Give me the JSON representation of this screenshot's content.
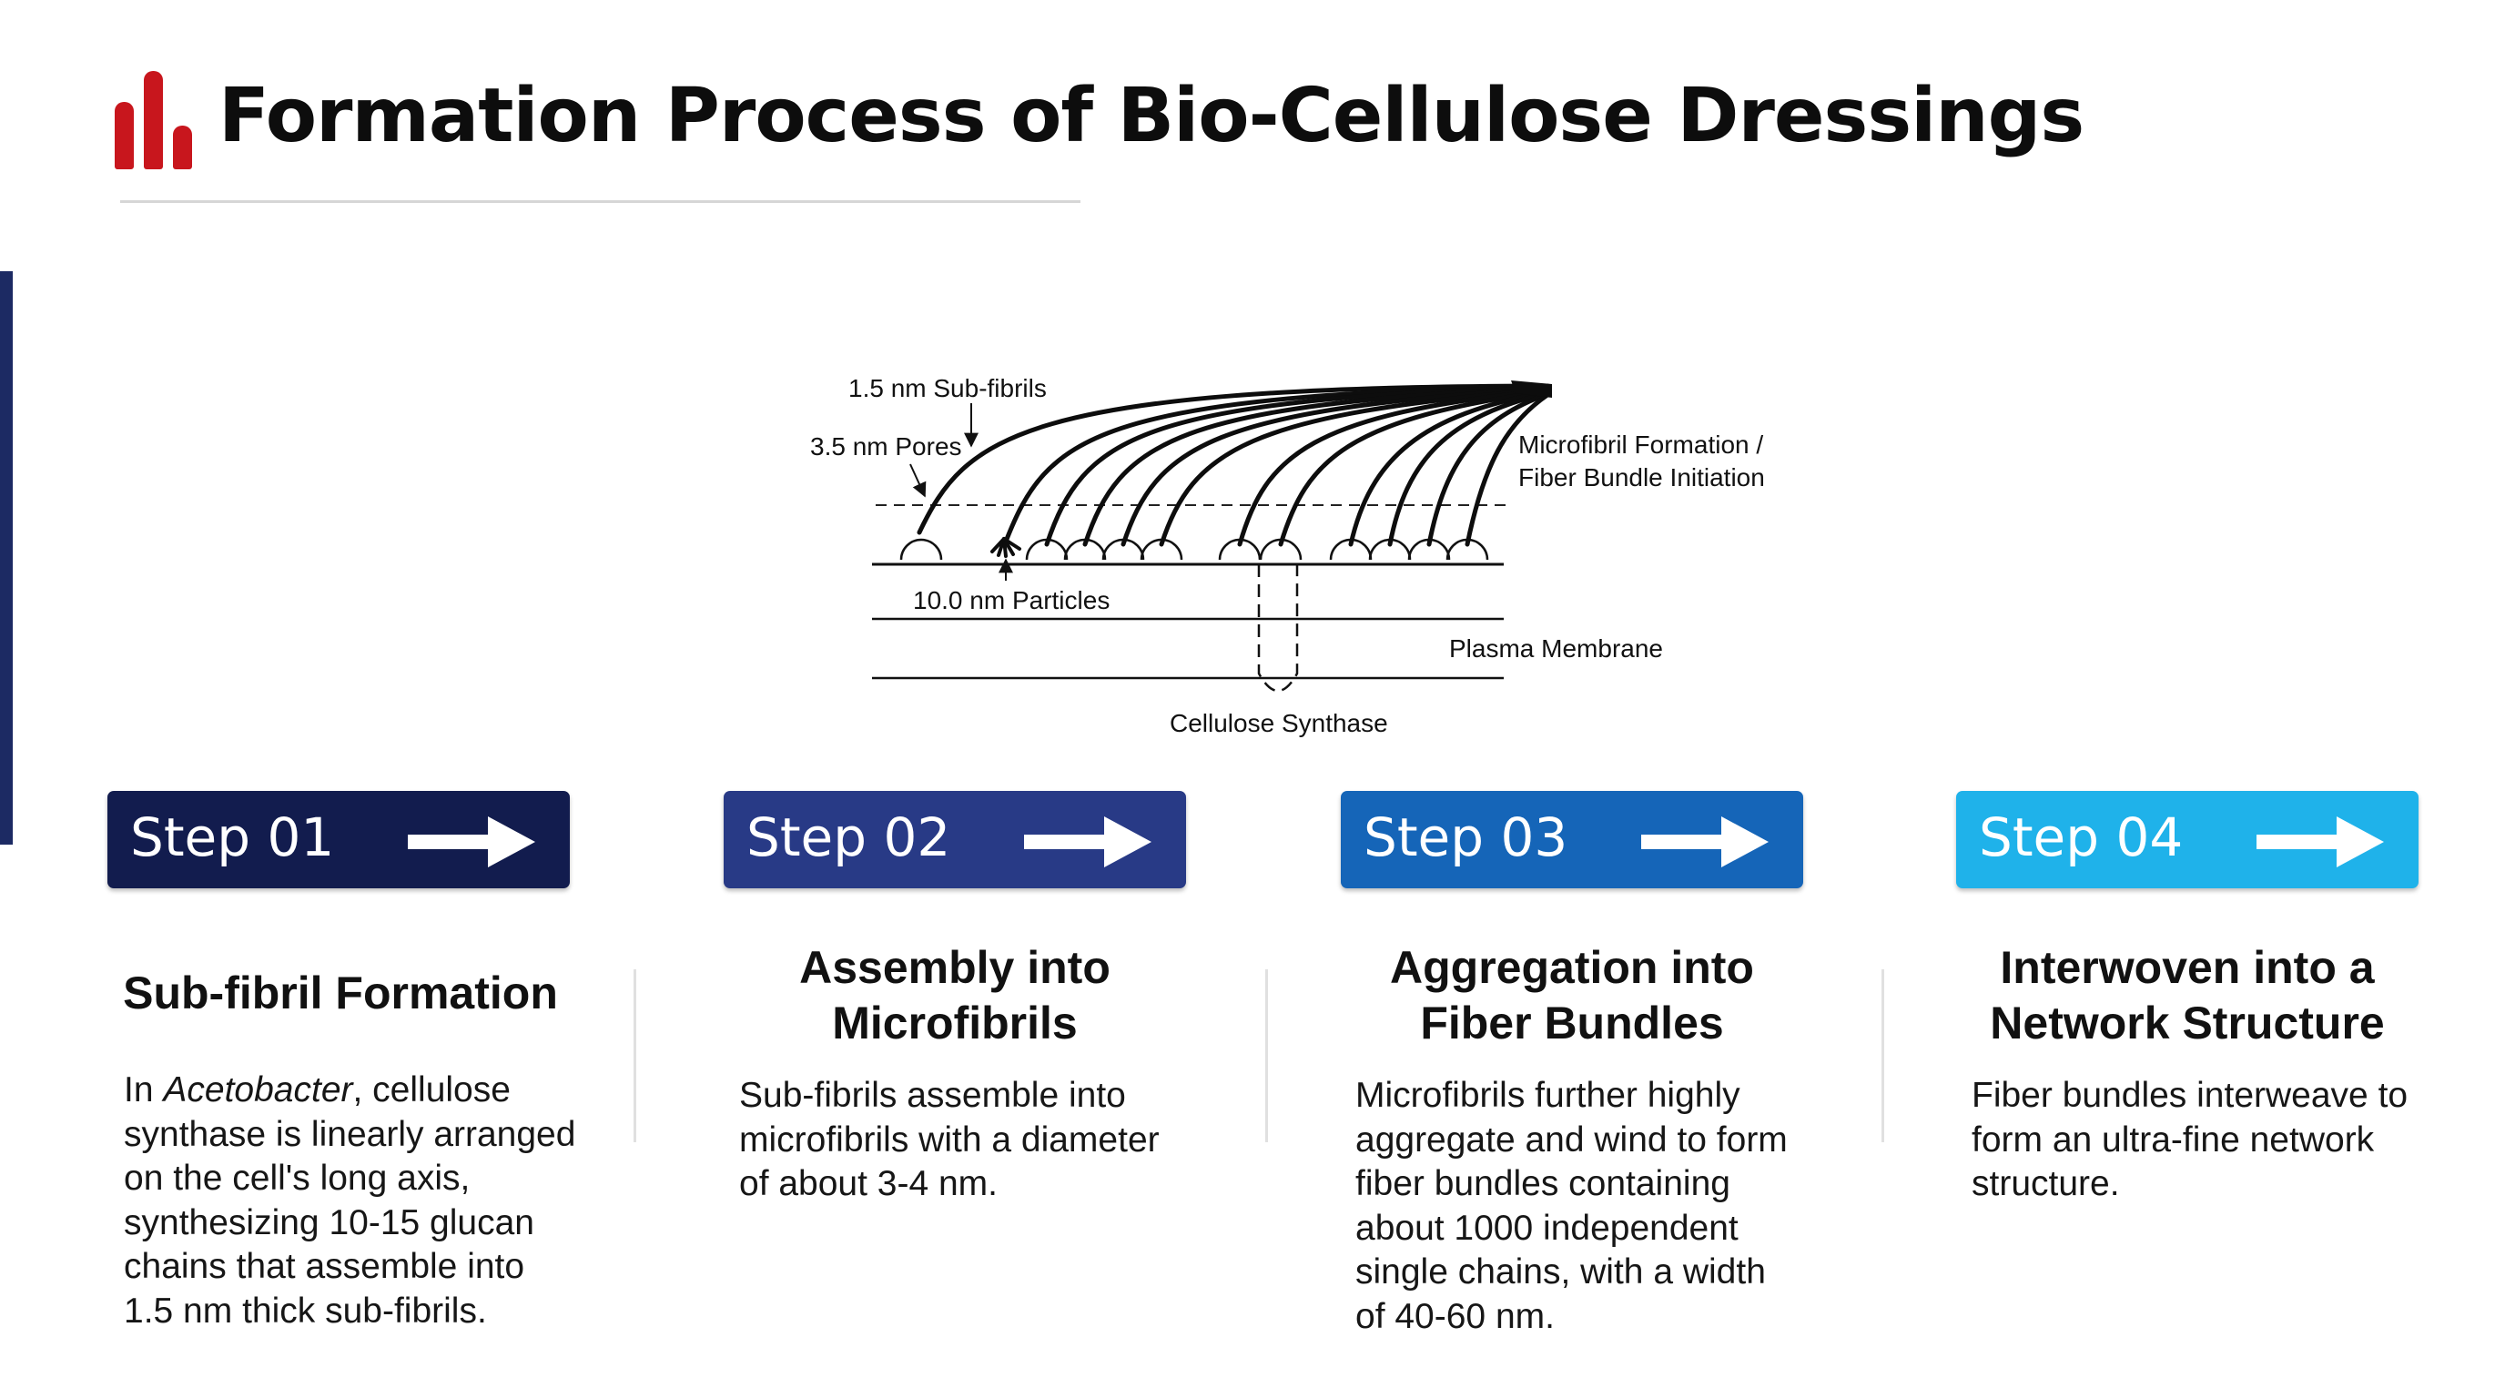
{
  "header": {
    "title": "Formation Process of Bio-Cellulose Dressings",
    "logo_icon": "bar-chart-icon",
    "logo_color": "#c8161d"
  },
  "diagram": {
    "labels": {
      "sub_fibrils": "1.5 nm Sub-fibrils",
      "pores": "3.5 nm Pores",
      "particles": "10.0 nm Particles",
      "microfibril_line1": "Microfibril Formation /",
      "microfibril_line2": "Fiber Bundle Initiation",
      "plasma_membrane": "Plasma Membrane",
      "cellulose_synthase": "Cellulose Synthase"
    }
  },
  "steps": [
    {
      "label": "Step 01",
      "color": "#121c4e",
      "title_lines": [
        "Sub-fibril Formation"
      ],
      "body_intro": "In ",
      "body_italic": "Acetobacter",
      "body_first_rest": ", cellulose",
      "body_lines": [
        "synthase is linearly arranged",
        "on the cell's long axis,",
        "synthesizing 10-15 glucan",
        "chains that assemble into",
        "1.5 nm thick sub-fibrils."
      ]
    },
    {
      "label": "Step 02",
      "color": "#283a86",
      "title_lines": [
        "Assembly into",
        "Microfibrils"
      ],
      "body_lines": [
        "Sub-fibrils assemble into",
        "microfibrils with a diameter",
        "of about 3-4 nm."
      ]
    },
    {
      "label": "Step 03",
      "color": "#1565b8",
      "title_lines": [
        "Aggregation into",
        "Fiber Bundles"
      ],
      "body_lines": [
        "Microfibrils further highly",
        "aggregate and wind to form",
        "fiber bundles containing",
        "about 1000 independent",
        "single chains, with a width",
        "of 40-60 nm."
      ]
    },
    {
      "label": "Step 04",
      "color": "#1fb2ea",
      "title_lines": [
        "Interwoven into a",
        "Network Structure"
      ],
      "body_lines": [
        "Fiber bundles interweave to",
        "form an ultra-fine network",
        "structure."
      ]
    }
  ]
}
